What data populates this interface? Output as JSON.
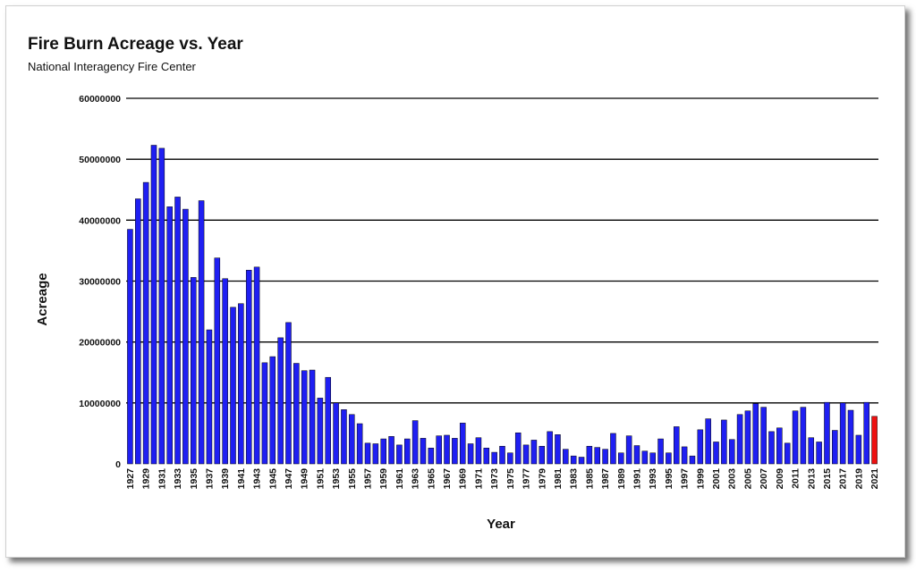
{
  "chart_data": {
    "type": "bar",
    "title": "Fire Burn Acreage vs. Year",
    "subtitle": "National Interagency Fire Center",
    "xlabel": "Year",
    "ylabel": "Acreage",
    "ylim": [
      0,
      60000000
    ],
    "y_ticks": [
      "0",
      "10000000",
      "20000000",
      "30000000",
      "40000000",
      "50000000",
      "60000000"
    ],
    "grid": true,
    "colors": {
      "bar": "#1f1ff2",
      "highlight": "#ee1111"
    },
    "highlight_category": "2021",
    "categories": [
      "1927",
      "1928",
      "1929",
      "1930",
      "1931",
      "1932",
      "1933",
      "1934",
      "1935",
      "1936",
      "1937",
      "1938",
      "1939",
      "1940",
      "1941",
      "1942",
      "1943",
      "1944",
      "1945",
      "1946",
      "1947",
      "1948",
      "1949",
      "1950",
      "1951",
      "1952",
      "1953",
      "1954",
      "1955",
      "1956",
      "1957",
      "1958",
      "1959",
      "1960",
      "1961",
      "1962",
      "1963",
      "1964",
      "1965",
      "1966",
      "1967",
      "1968",
      "1969",
      "1970",
      "1971",
      "1972",
      "1973",
      "1974",
      "1975",
      "1976",
      "1977",
      "1978",
      "1979",
      "1980",
      "1981",
      "1982",
      "1983",
      "1984",
      "1985",
      "1986",
      "1987",
      "1988",
      "1989",
      "1990",
      "1991",
      "1992",
      "1993",
      "1994",
      "1995",
      "1996",
      "1997",
      "1998",
      "1999",
      "2000",
      "2001",
      "2002",
      "2003",
      "2004",
      "2005",
      "2006",
      "2007",
      "2008",
      "2009",
      "2010",
      "2011",
      "2012",
      "2013",
      "2014",
      "2015",
      "2016",
      "2017",
      "2018",
      "2019",
      "2020",
      "2021"
    ],
    "values": [
      38500000,
      43500000,
      46200000,
      52300000,
      51800000,
      42200000,
      43800000,
      41800000,
      30600000,
      43200000,
      22000000,
      33800000,
      30400000,
      25700000,
      26300000,
      31800000,
      32300000,
      16600000,
      17600000,
      20700000,
      23200000,
      16500000,
      15300000,
      15400000,
      10800000,
      14200000,
      10000000,
      8900000,
      8100000,
      6600000,
      3400000,
      3300000,
      4100000,
      4500000,
      3100000,
      4100000,
      7100000,
      4200000,
      2600000,
      4600000,
      4700000,
      4200000,
      6700000,
      3300000,
      4300000,
      2600000,
      1900000,
      2900000,
      1800000,
      5100000,
      3100000,
      3900000,
      2900000,
      5300000,
      4800000,
      2400000,
      1300000,
      1100000,
      2900000,
      2700000,
      2400000,
      5000000,
      1800000,
      4600000,
      3000000,
      2100000,
      1800000,
      4100000,
      1800000,
      6100000,
      2800000,
      1300000,
      5600000,
      7400000,
      3600000,
      7200000,
      4000000,
      8100000,
      8700000,
      9900000,
      9300000,
      5300000,
      5900000,
      3400000,
      8700000,
      9300000,
      4300000,
      3600000,
      10100000,
      5500000,
      10000000,
      8800000,
      4700000,
      10100000,
      7800000
    ],
    "tick_labels": [
      "1927",
      "1929",
      "1931",
      "1933",
      "1935",
      "1937",
      "1939",
      "1941",
      "1943",
      "1945",
      "1947",
      "1949",
      "1951",
      "1953",
      "1955",
      "1957",
      "1959",
      "1961",
      "1963",
      "1965",
      "1967",
      "1969",
      "1971",
      "1973",
      "1975",
      "1977",
      "1979",
      "1981",
      "1983",
      "1985",
      "1987",
      "1989",
      "1991",
      "1993",
      "1995",
      "1997",
      "1999",
      "2001",
      "2003",
      "2005",
      "2007",
      "2009",
      "2011",
      "2013",
      "2015",
      "2017",
      "2019",
      "2021"
    ]
  }
}
